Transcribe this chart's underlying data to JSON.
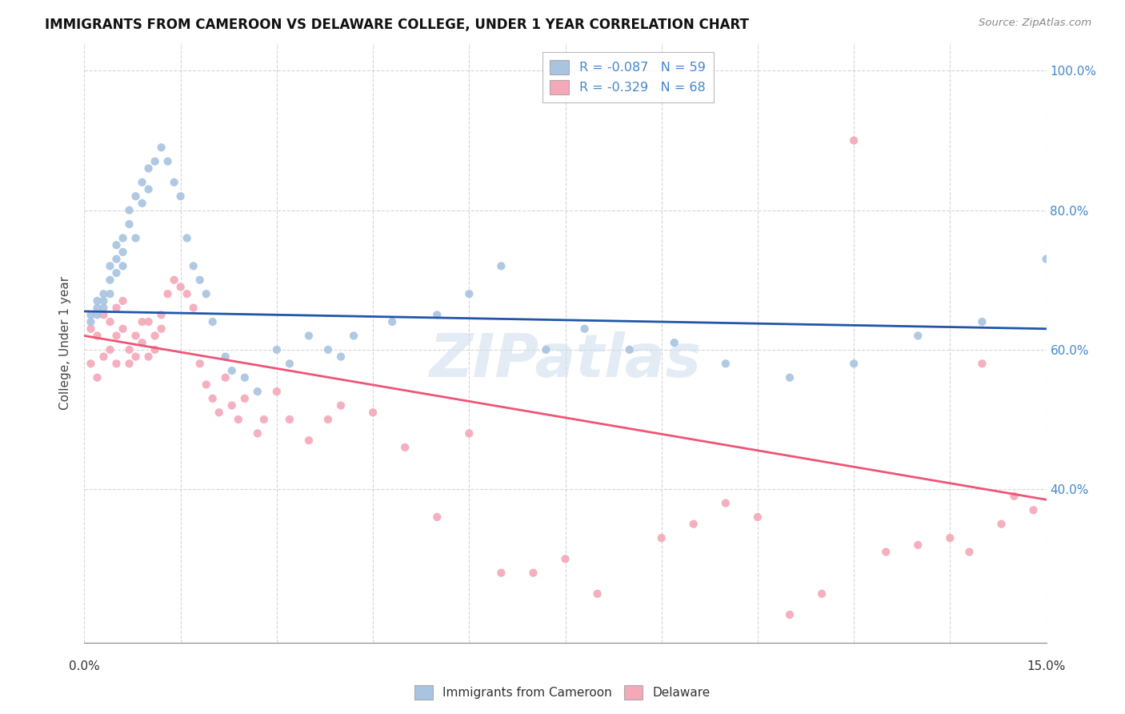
{
  "title": "IMMIGRANTS FROM CAMEROON VS DELAWARE COLLEGE, UNDER 1 YEAR CORRELATION CHART",
  "source": "Source: ZipAtlas.com",
  "ylabel": "College, Under 1 year",
  "xlim": [
    0.0,
    0.15
  ],
  "ylim": [
    0.18,
    1.04
  ],
  "legend_r1": "-0.087",
  "legend_n1": "59",
  "legend_r2": "-0.329",
  "legend_n2": "68",
  "blue_color": "#A8C4E0",
  "pink_color": "#F4A8B8",
  "line_blue": "#2255AA",
  "line_pink": "#EE5577",
  "watermark": "ZIPatlas",
  "blue_scatter_x": [
    0.001,
    0.001,
    0.002,
    0.002,
    0.002,
    0.003,
    0.003,
    0.003,
    0.004,
    0.004,
    0.004,
    0.005,
    0.005,
    0.005,
    0.006,
    0.006,
    0.006,
    0.007,
    0.007,
    0.008,
    0.008,
    0.009,
    0.009,
    0.01,
    0.01,
    0.011,
    0.012,
    0.013,
    0.014,
    0.015,
    0.016,
    0.017,
    0.018,
    0.019,
    0.02,
    0.022,
    0.023,
    0.025,
    0.027,
    0.03,
    0.032,
    0.035,
    0.038,
    0.04,
    0.042,
    0.048,
    0.055,
    0.06,
    0.065,
    0.072,
    0.078,
    0.085,
    0.092,
    0.1,
    0.11,
    0.12,
    0.13,
    0.14,
    0.15
  ],
  "blue_scatter_y": [
    0.65,
    0.64,
    0.66,
    0.67,
    0.65,
    0.68,
    0.67,
    0.66,
    0.72,
    0.7,
    0.68,
    0.75,
    0.73,
    0.71,
    0.76,
    0.74,
    0.72,
    0.8,
    0.78,
    0.82,
    0.76,
    0.84,
    0.81,
    0.86,
    0.83,
    0.87,
    0.89,
    0.87,
    0.84,
    0.82,
    0.76,
    0.72,
    0.7,
    0.68,
    0.64,
    0.59,
    0.57,
    0.56,
    0.54,
    0.6,
    0.58,
    0.62,
    0.6,
    0.59,
    0.62,
    0.64,
    0.65,
    0.68,
    0.72,
    0.6,
    0.63,
    0.6,
    0.61,
    0.58,
    0.56,
    0.58,
    0.62,
    0.64,
    0.73
  ],
  "pink_scatter_x": [
    0.001,
    0.001,
    0.002,
    0.002,
    0.003,
    0.003,
    0.004,
    0.004,
    0.005,
    0.005,
    0.005,
    0.006,
    0.006,
    0.007,
    0.007,
    0.008,
    0.008,
    0.009,
    0.009,
    0.01,
    0.01,
    0.011,
    0.011,
    0.012,
    0.012,
    0.013,
    0.014,
    0.015,
    0.016,
    0.017,
    0.018,
    0.019,
    0.02,
    0.021,
    0.022,
    0.023,
    0.024,
    0.025,
    0.027,
    0.028,
    0.03,
    0.032,
    0.035,
    0.038,
    0.04,
    0.045,
    0.05,
    0.055,
    0.06,
    0.065,
    0.07,
    0.075,
    0.08,
    0.09,
    0.095,
    0.1,
    0.105,
    0.11,
    0.115,
    0.12,
    0.125,
    0.13,
    0.135,
    0.138,
    0.14,
    0.143,
    0.145,
    0.148
  ],
  "pink_scatter_y": [
    0.63,
    0.58,
    0.62,
    0.56,
    0.65,
    0.59,
    0.64,
    0.6,
    0.66,
    0.62,
    0.58,
    0.67,
    0.63,
    0.6,
    0.58,
    0.62,
    0.59,
    0.64,
    0.61,
    0.64,
    0.59,
    0.62,
    0.6,
    0.65,
    0.63,
    0.68,
    0.7,
    0.69,
    0.68,
    0.66,
    0.58,
    0.55,
    0.53,
    0.51,
    0.56,
    0.52,
    0.5,
    0.53,
    0.48,
    0.5,
    0.54,
    0.5,
    0.47,
    0.5,
    0.52,
    0.51,
    0.46,
    0.36,
    0.48,
    0.28,
    0.28,
    0.3,
    0.25,
    0.33,
    0.35,
    0.38,
    0.36,
    0.22,
    0.25,
    0.9,
    0.31,
    0.32,
    0.33,
    0.31,
    0.58,
    0.35,
    0.39,
    0.37
  ],
  "blue_line_x": [
    0.0,
    0.15
  ],
  "blue_line_y": [
    0.655,
    0.63
  ],
  "pink_line_x": [
    0.0,
    0.15
  ],
  "pink_line_y": [
    0.62,
    0.385
  ],
  "yticks": [
    0.4,
    0.6,
    0.8,
    1.0
  ],
  "ytick_labels": [
    "40.0%",
    "60.0%",
    "80.0%",
    "100.0%"
  ],
  "xtick_count": 11
}
